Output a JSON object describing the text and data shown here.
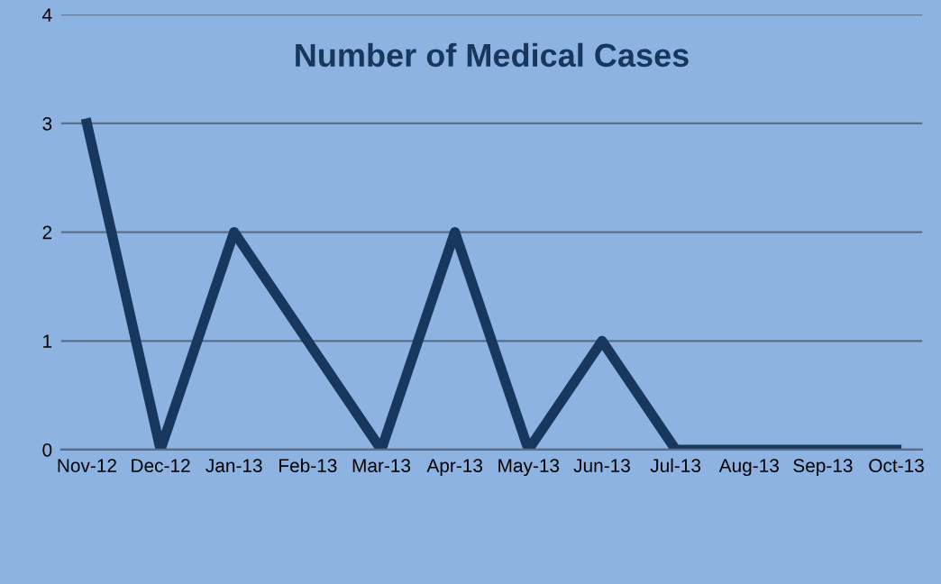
{
  "chart_data": {
    "type": "line",
    "title": "Number of Medical Cases",
    "categories": [
      "Nov-12",
      "Dec-12",
      "Jan-13",
      "Feb-13",
      "Mar-13",
      "Apr-13",
      "May-13",
      "Jun-13",
      "Jul-13",
      "Aug-13",
      "Sep-13",
      "Oct-13"
    ],
    "series": [
      {
        "color": "#17375e",
        "values": [
          3,
          0,
          2,
          1,
          0,
          2,
          0,
          1,
          0,
          0,
          0,
          0
        ]
      }
    ],
    "ylim": [
      0,
      4
    ],
    "yticks": [
      0,
      1,
      2,
      3,
      4
    ],
    "grid": "y",
    "marker": "none",
    "line_style": "solid"
  }
}
